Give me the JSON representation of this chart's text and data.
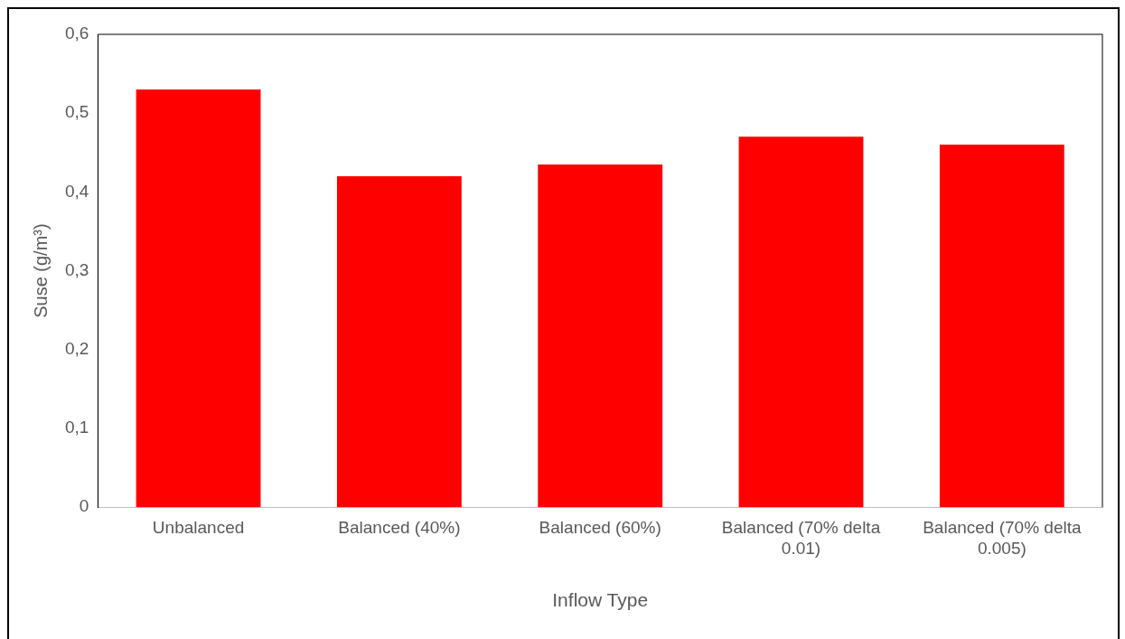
{
  "chart_data": {
    "type": "bar",
    "xlabel": "Inflow Type",
    "ylabel": "Suse (g/m³)",
    "categories": [
      "Unbalanced",
      "Balanced (40%)",
      "Balanced (60%)",
      "Balanced (70% delta 0.01)",
      "Balanced (70% delta 0.005)"
    ],
    "values": [
      0.53,
      0.42,
      0.435,
      0.47,
      0.46
    ],
    "color": "#ff0000",
    "ylim": [
      0,
      0.6
    ],
    "yticks": [
      {
        "value": 0,
        "label": "0"
      },
      {
        "value": 0.1,
        "label": "0,1"
      },
      {
        "value": 0.2,
        "label": "0,2"
      },
      {
        "value": 0.3,
        "label": "0,3"
      },
      {
        "value": 0.4,
        "label": "0,4"
      },
      {
        "value": 0.5,
        "label": "0,5"
      },
      {
        "value": 0.6,
        "label": "0,6"
      }
    ],
    "grid": false,
    "legend": false
  }
}
